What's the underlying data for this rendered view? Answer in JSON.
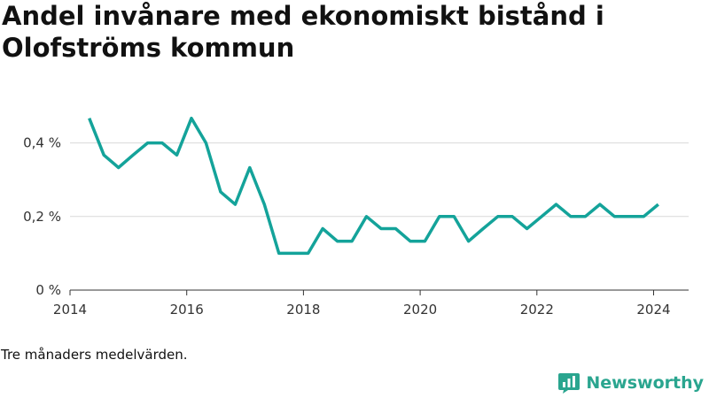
{
  "title": "Andel invånare med ekonomiskt bistånd i Olofströms kommun",
  "note": "Tre månaders medelvärden.",
  "brand": {
    "name": "Newsworthy",
    "color": "#2aa58f",
    "icon": "newsworthy-logo-icon"
  },
  "colors": {
    "line": "#14a39a",
    "grid": "#d9d9d9",
    "axis": "#333333",
    "text": "#333333"
  },
  "chart_data": {
    "type": "line",
    "title": "Andel invånare med ekonomiskt bistånd i Olofströms kommun",
    "xlabel": "",
    "ylabel": "",
    "xlim": [
      2014.0,
      2024.6
    ],
    "ylim": [
      0,
      0.5
    ],
    "x_ticks": [
      2014,
      2016,
      2018,
      2020,
      2022,
      2024
    ],
    "x_tick_labels": [
      "2014",
      "2016",
      "2018",
      "2020",
      "2022",
      "2024"
    ],
    "y_ticks": [
      0,
      0.2,
      0.4
    ],
    "y_tick_labels": [
      "0 %",
      "0,2 %",
      "0,4 %"
    ],
    "grid": true,
    "series": [
      {
        "x": [
          2014.33,
          2014.58,
          2014.83,
          2015.08,
          2015.33,
          2015.58,
          2015.83,
          2016.08,
          2016.33,
          2016.58,
          2016.83,
          2017.08,
          2017.33,
          2017.58,
          2017.83,
          2018.08,
          2018.33,
          2018.58,
          2018.83,
          2019.08,
          2019.33,
          2019.58,
          2019.83,
          2020.08,
          2020.33,
          2020.58,
          2020.83,
          2021.08,
          2021.33,
          2021.58,
          2021.83,
          2022.08,
          2022.33,
          2022.58,
          2022.83,
          2023.08,
          2023.33,
          2023.58,
          2023.83,
          2024.08
        ],
        "y": [
          0.467,
          0.367,
          0.333,
          0.367,
          0.4,
          0.4,
          0.367,
          0.467,
          0.4,
          0.267,
          0.233,
          0.333,
          0.233,
          0.1,
          0.1,
          0.1,
          0.167,
          0.133,
          0.133,
          0.2,
          0.167,
          0.167,
          0.133,
          0.133,
          0.2,
          0.2,
          0.133,
          0.167,
          0.2,
          0.2,
          0.167,
          0.2,
          0.233,
          0.2,
          0.2,
          0.233,
          0.2,
          0.2,
          0.2,
          0.233
        ]
      }
    ]
  }
}
